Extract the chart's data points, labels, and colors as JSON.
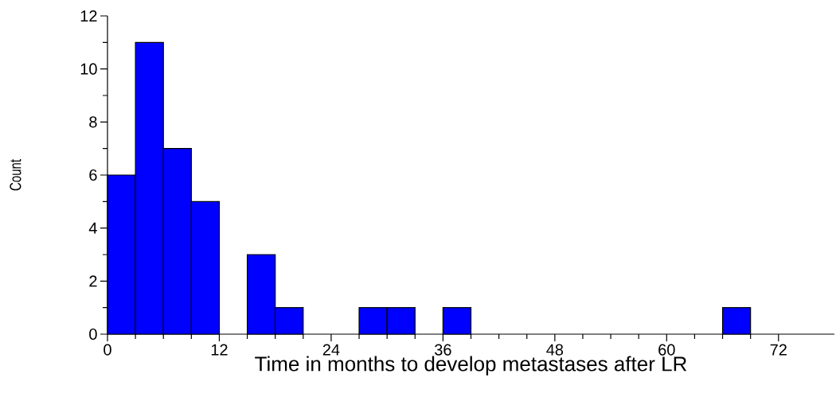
{
  "chart_data": {
    "type": "histogram",
    "xlabel": "Time in months to develop metastases after LR",
    "ylabel": "Count",
    "bins": [
      0,
      3,
      6,
      9,
      12,
      15,
      18,
      21,
      24,
      27,
      30,
      33,
      36,
      39,
      42,
      45,
      48,
      51,
      54,
      57,
      60,
      63,
      66,
      69,
      72,
      75,
      78
    ],
    "values": [
      6,
      11,
      7,
      5,
      0,
      3,
      1,
      0,
      0,
      1,
      1,
      0,
      1,
      0,
      0,
      0,
      0,
      0,
      0,
      0,
      0,
      0,
      1,
      0,
      0,
      0
    ],
    "color": "#0000ff",
    "xlim": [
      0,
      78
    ],
    "xticks": [
      0,
      12,
      24,
      36,
      48,
      60,
      72
    ],
    "ylim": [
      0,
      12
    ],
    "yticks": [
      0,
      2,
      4,
      6,
      8,
      10,
      12
    ],
    "grid": false
  }
}
